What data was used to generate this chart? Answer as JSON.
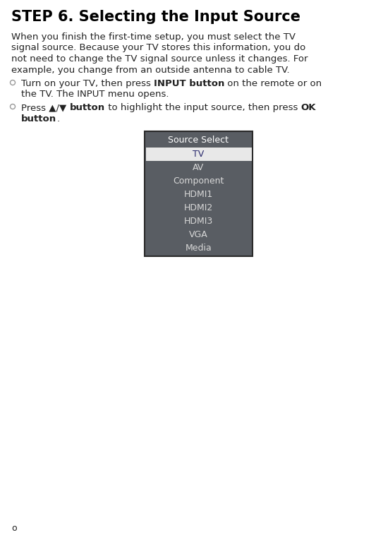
{
  "title": "STEP 6. Selecting the Input Source",
  "para_lines": [
    "When you finish the first-time setup, you must select the TV",
    "signal source. Because your TV stores this information, you do",
    "not need to change the TV signal source unless it changes. For",
    "example, you change from an outside antenna to cable TV."
  ],
  "bullet1_line1": [
    [
      "Turn on your TV, then press ",
      false
    ],
    [
      "INPUT button",
      true
    ],
    [
      " on the remote or on",
      false
    ]
  ],
  "bullet1_line2": [
    [
      "the TV. The INPUT menu opens.",
      false
    ]
  ],
  "bullet2_line1": [
    [
      "Press ▲/▼ ",
      false
    ],
    [
      "button",
      true
    ],
    [
      " to highlight the input source, then press ",
      false
    ],
    [
      "OK",
      true
    ]
  ],
  "bullet2_line2": [
    [
      "button",
      true
    ],
    [
      ".",
      false
    ]
  ],
  "menu_title": "Source Select",
  "menu_items": [
    "TV",
    "AV",
    "Component",
    "HDMI1",
    "HDMI2",
    "HDMI3",
    "VGA",
    "Media"
  ],
  "menu_selected": "TV",
  "menu_bg": "#595d63",
  "menu_selected_bg": "#e8e8e8",
  "menu_selected_fg": "#2b2b6e",
  "menu_text_fg": "#d8d8d8",
  "menu_header_fg": "#ffffff",
  "menu_border": "#2a2a2a",
  "bg_color": "#ffffff",
  "title_color": "#000000",
  "body_color": "#222222",
  "footer_text": "o",
  "bullet_circle_color": "#999999",
  "fig_width": 5.43,
  "fig_height": 7.58,
  "dpi": 100
}
